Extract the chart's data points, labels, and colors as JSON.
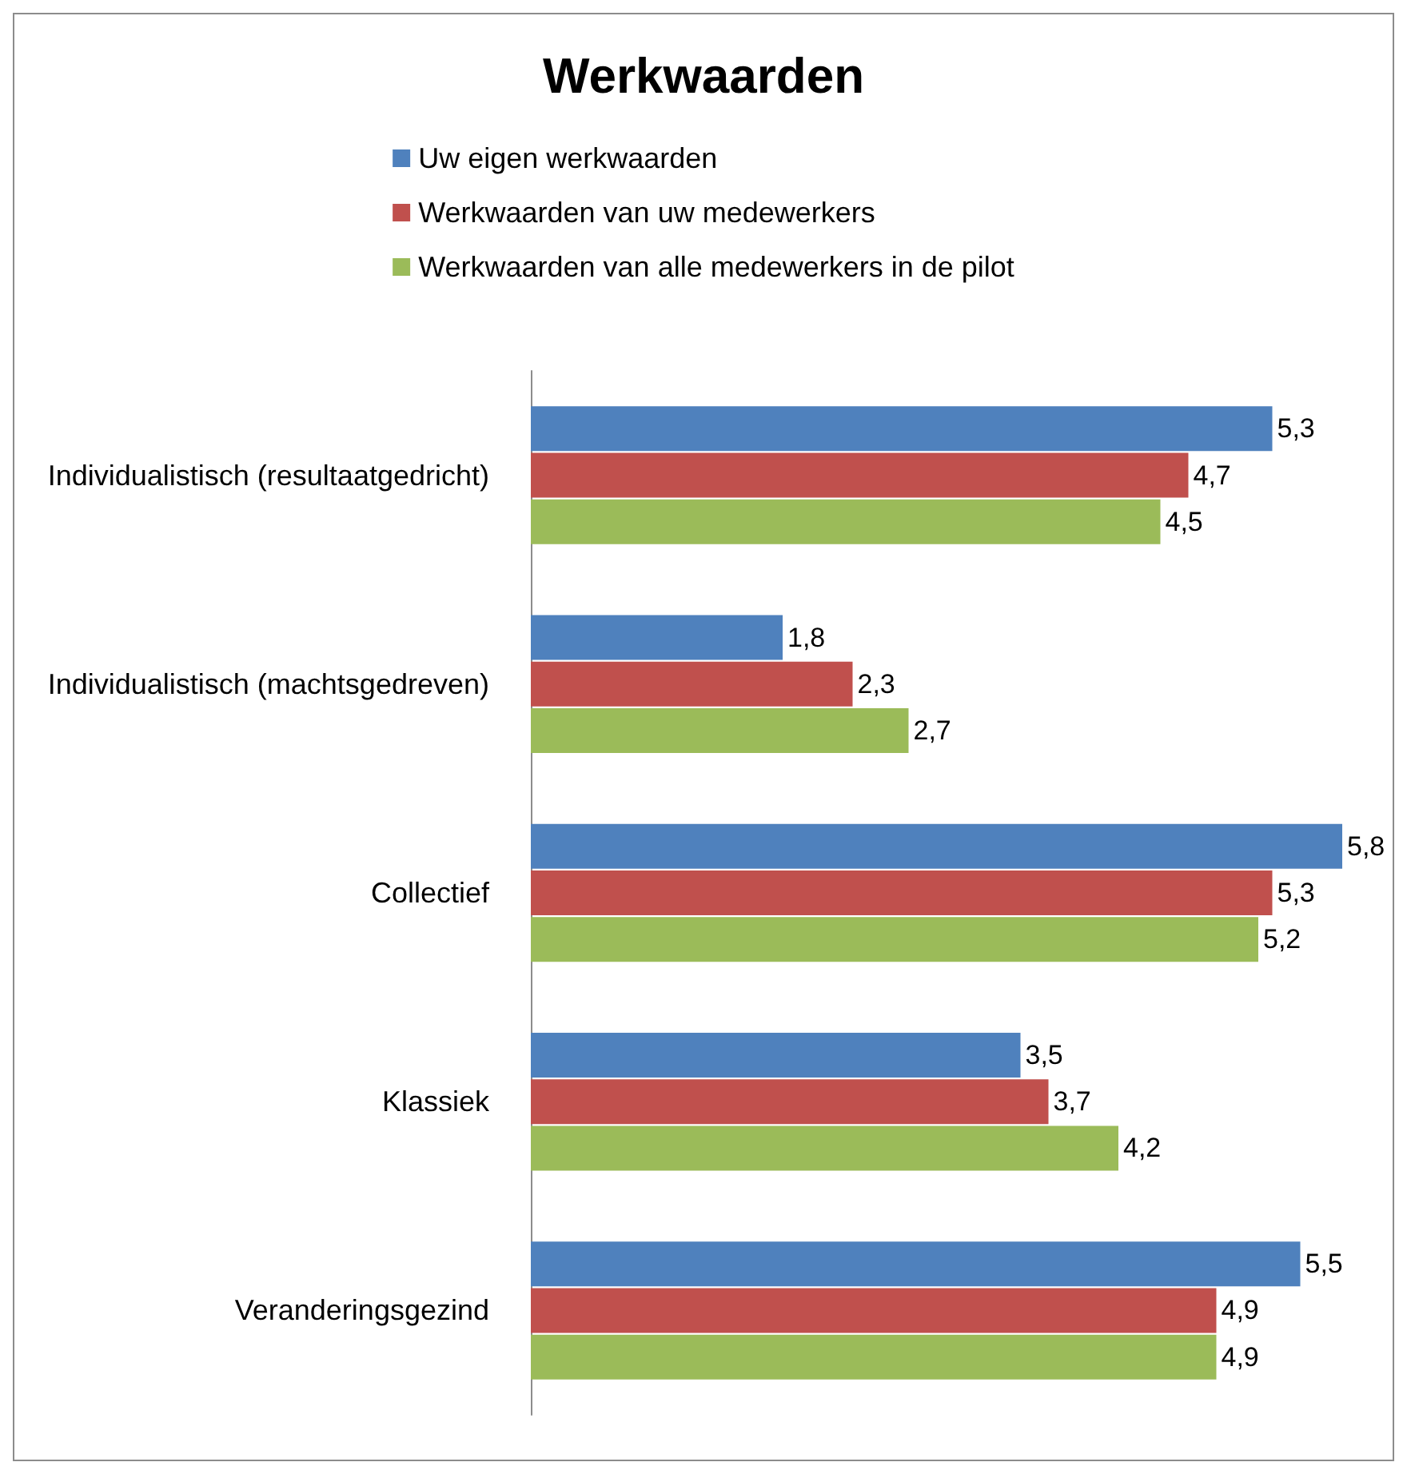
{
  "chart_data": {
    "type": "bar",
    "orientation": "horizontal",
    "title": "Werkwaarden",
    "categories": [
      "Individualistisch (resultaatgedricht)",
      "Individualistisch (machtsgedreven)",
      "Collectief",
      "Klassiek",
      "Veranderingsgezind"
    ],
    "series": [
      {
        "name": "Uw eigen werkwaarden",
        "color": "#4f81bd",
        "values": [
          5.3,
          1.8,
          5.8,
          3.5,
          5.5
        ],
        "value_labels": [
          "5,3",
          "1,8",
          "5,8",
          "3,5",
          "5,5"
        ]
      },
      {
        "name": "Werkwaarden van uw medewerkers",
        "color": "#c0504d",
        "values": [
          4.7,
          2.3,
          5.3,
          3.7,
          4.9
        ],
        "value_labels": [
          "4,7",
          "2,3",
          "5,3",
          "3,7",
          "4,9"
        ]
      },
      {
        "name": "Werkwaarden van alle medewerkers in de pilot",
        "color": "#9bbb59",
        "values": [
          4.5,
          2.7,
          5.2,
          4.2,
          4.9
        ],
        "value_labels": [
          "4,5",
          "2,7",
          "5,2",
          "4,2",
          "4,9"
        ]
      }
    ],
    "legend": "top",
    "tick_labels": "y"
  }
}
